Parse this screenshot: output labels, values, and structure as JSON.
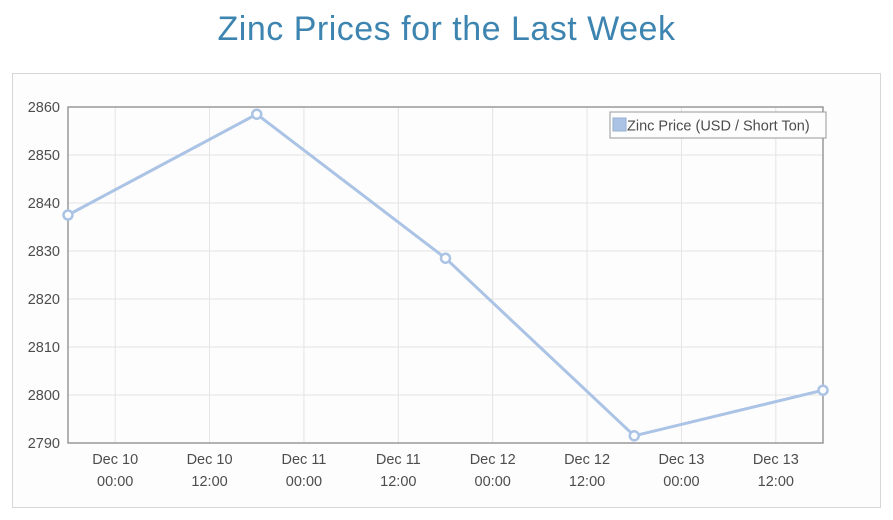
{
  "page": {
    "title": "Zinc Prices for the Last Week"
  },
  "colors": {
    "title": "#3d85b0",
    "series_line": "#abc3e5",
    "marker_fill": "#fdfdfd",
    "swatch_border": "#9ab0cf",
    "grid_line": "#e4e4e4",
    "axis_frame": "#8b8b8b",
    "tick_label": "#4d4d4d",
    "legend_border": "#999999",
    "legend_text": "#4d4d4d",
    "panel_border": "#d6d6d6",
    "panel_background": "#fdfdfd"
  },
  "chart_data": {
    "type": "line",
    "title": "Zinc Prices for the Last Week",
    "grid": true,
    "legend_position": "top-right",
    "legend_entries": [
      "Zinc Price (USD / Short Ton)"
    ],
    "y_axis": {
      "label": "",
      "min": 2790,
      "max": 2860,
      "tick_step": 10,
      "ticks": [
        2860,
        2850,
        2840,
        2830,
        2820,
        2810,
        2800,
        2790
      ]
    },
    "x_axis": {
      "label": "",
      "range_hours": [
        0,
        96
      ],
      "ticks": [
        {
          "pos": 6,
          "line1": "Dec 10",
          "line2": "00:00"
        },
        {
          "pos": 18,
          "line1": "Dec 10",
          "line2": "12:00"
        },
        {
          "pos": 30,
          "line1": "Dec 11",
          "line2": "00:00"
        },
        {
          "pos": 42,
          "line1": "Dec 11",
          "line2": "12:00"
        },
        {
          "pos": 54,
          "line1": "Dec 12",
          "line2": "00:00"
        },
        {
          "pos": 66,
          "line1": "Dec 12",
          "line2": "12:00"
        },
        {
          "pos": 78,
          "line1": "Dec 13",
          "line2": "00:00"
        },
        {
          "pos": 90,
          "line1": "Dec 13",
          "line2": "12:00"
        }
      ]
    },
    "series": [
      {
        "name": "Zinc Price (USD / Short Ton)",
        "color": "#abc3e5",
        "points": [
          {
            "x": 0,
            "y": 2837.5
          },
          {
            "x": 24,
            "y": 2858.5
          },
          {
            "x": 48,
            "y": 2828.5
          },
          {
            "x": 72,
            "y": 2791.5
          },
          {
            "x": 96,
            "y": 2801
          }
        ]
      }
    ]
  }
}
